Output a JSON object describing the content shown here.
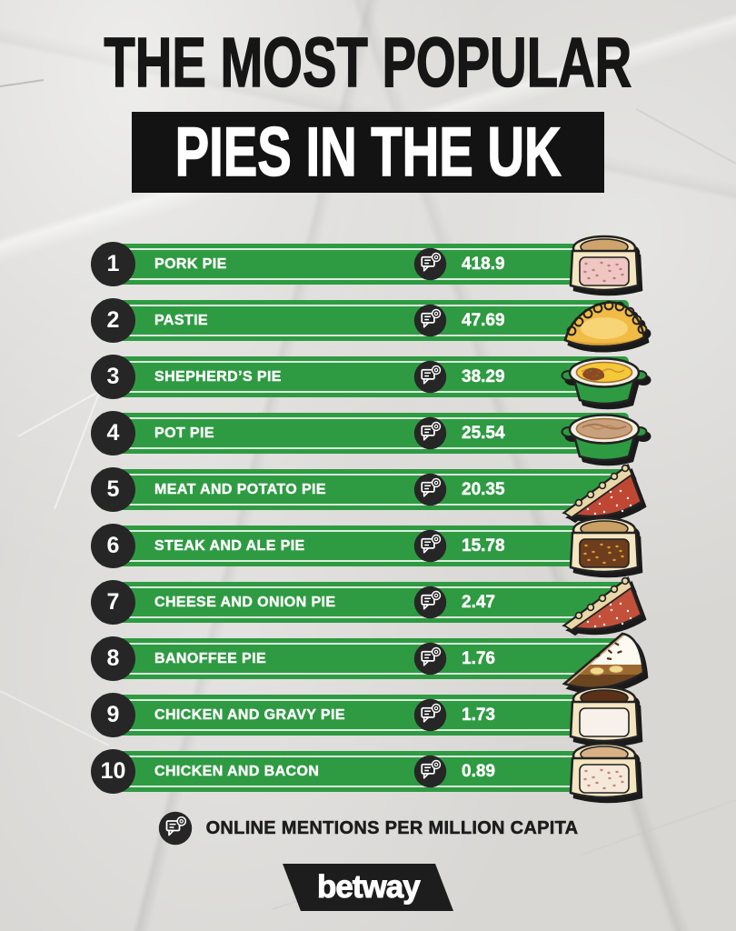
{
  "theme": {
    "bar_green": "#2e9b42",
    "badge_black": "#262626",
    "background_gray": "#d8d7d4",
    "title_black": "#131313",
    "text_white": "#ffffff"
  },
  "title": {
    "line1": "THE MOST POPULAR",
    "line2": "PIES IN THE UK"
  },
  "rows": [
    {
      "rank": "1",
      "label": "PORK PIE",
      "icon": "mentions-icon",
      "value": "418.9",
      "illustration": {
        "name": "pork-pie",
        "type": "cutpie",
        "fill": "#efc6c2",
        "specks": "#b97f84",
        "top": "#cfa36c"
      }
    },
    {
      "rank": "2",
      "label": "PASTIE",
      "icon": "mentions-icon",
      "value": "47.69",
      "illustration": {
        "name": "pasty",
        "type": "pasty",
        "fill": "#f1bb45",
        "specks": "",
        "top": "#f8d87e"
      }
    },
    {
      "rank": "3",
      "label": "SHEPHERD’S PIE",
      "icon": "mentions-icon",
      "value": "38.29",
      "illustration": {
        "name": "shepherds-pie",
        "type": "ramekin",
        "fill": "#f5c835",
        "specks": "#c23b28",
        "top": "#8a4a23"
      }
    },
    {
      "rank": "4",
      "label": "POT PIE",
      "icon": "mentions-icon",
      "value": "25.54",
      "illustration": {
        "name": "pot-pie",
        "type": "ramekin",
        "fill": "#c9a07f",
        "specks": "",
        "top": "#a87a52"
      }
    },
    {
      "rank": "5",
      "label": "MEAT AND POTATO PIE",
      "icon": "mentions-icon",
      "value": "20.35",
      "illustration": {
        "name": "meat-and-potato-pie",
        "type": "wedge",
        "fill": "#bf4733",
        "specks": "#ffffff",
        "top": "#ead7a8"
      }
    },
    {
      "rank": "6",
      "label": "STEAK AND ALE PIE",
      "icon": "mentions-icon",
      "value": "15.78",
      "illustration": {
        "name": "steak-and-ale-pie",
        "type": "cutpie",
        "fill": "#6d3d1e",
        "specks": "#e09a2a",
        "top": "#caa064"
      }
    },
    {
      "rank": "7",
      "label": "CHEESE AND ONION PIE",
      "icon": "mentions-icon",
      "value": "2.47",
      "illustration": {
        "name": "cheese-and-onion-pie",
        "type": "wedge",
        "fill": "#c3503a",
        "specks": "#ffffff",
        "top": "#ead7a8"
      }
    },
    {
      "rank": "8",
      "label": "BANOFFEE PIE",
      "icon": "mentions-icon",
      "value": "1.76",
      "illustration": {
        "name": "banoffee-pie",
        "type": "banoffee",
        "fill": "#fdfaf2",
        "specks": "#4a2d16",
        "top": "#d9b184"
      }
    },
    {
      "rank": "9",
      "label": "CHICKEN AND GRAVY PIE",
      "icon": "mentions-icon",
      "value": "1.73",
      "illustration": {
        "name": "chicken-and-gravy-pie",
        "type": "cutpie",
        "fill": "#f7f1ea",
        "specks": "",
        "top": "#5a3117"
      }
    },
    {
      "rank": "10",
      "label": "CHICKEN AND BACON",
      "icon": "mentions-icon",
      "value": "0.89",
      "illustration": {
        "name": "chicken-and-bacon-pie",
        "type": "cutpie",
        "fill": "#f5e9d9",
        "specks": "#c4867c",
        "top": "#d9b184"
      }
    }
  ],
  "legend": {
    "icon": "mentions-icon",
    "text": "ONLINE MENTIONS PER MILLION CAPITA"
  },
  "footer": {
    "brand": "betway"
  },
  "chart_data": {
    "type": "bar",
    "title": "THE MOST POPULAR PIES IN THE UK",
    "categories": [
      "PORK PIE",
      "PASTIE",
      "SHEPHERD’S PIE",
      "POT PIE",
      "MEAT AND POTATO PIE",
      "STEAK AND ALE PIE",
      "CHEESE AND ONION PIE",
      "BANOFFEE PIE",
      "CHICKEN AND GRAVY PIE",
      "CHICKEN AND BACON"
    ],
    "values": [
      418.9,
      47.69,
      38.29,
      25.54,
      20.35,
      15.78,
      2.47,
      1.76,
      1.73,
      0.89
    ],
    "ylabel": "ONLINE MENTIONS PER MILLION CAPITA",
    "legend_position": "bottom",
    "grid": false,
    "note": "ranked list with equal-length bars, values shown as data labels"
  }
}
